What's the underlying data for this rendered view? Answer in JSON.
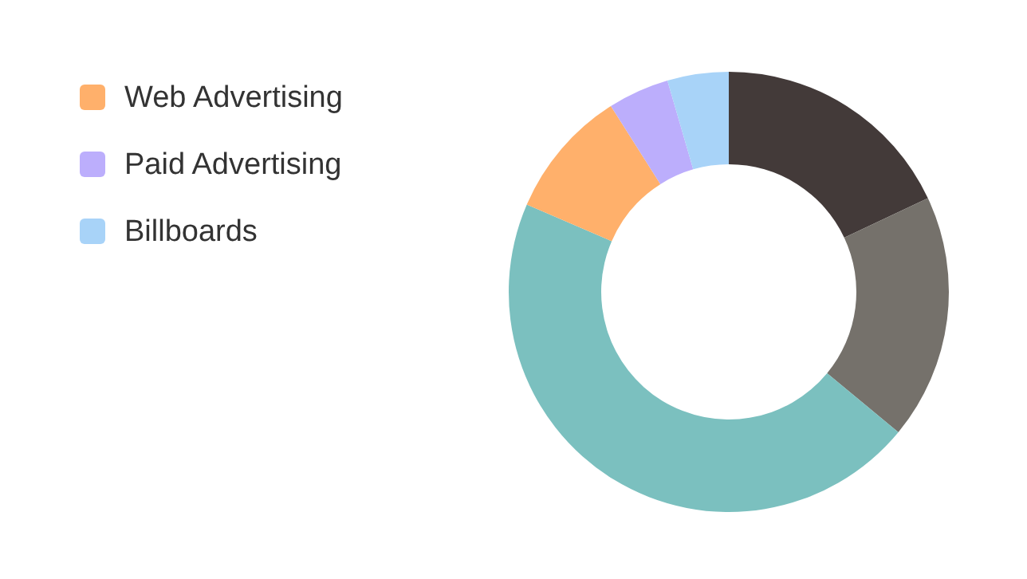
{
  "chart_data": {
    "type": "donut",
    "categories": [
      null,
      null,
      null,
      "Web Advertising",
      "Paid Advertising",
      "Billboards"
    ],
    "values": [
      18,
      18,
      45.5,
      9.5,
      4.5,
      4.5
    ],
    "colors": [
      "#433a39",
      "#75716b",
      "#7bc0bf",
      "#ffb06b",
      "#bcaefc",
      "#a8d3f8"
    ],
    "legend": "left"
  }
}
